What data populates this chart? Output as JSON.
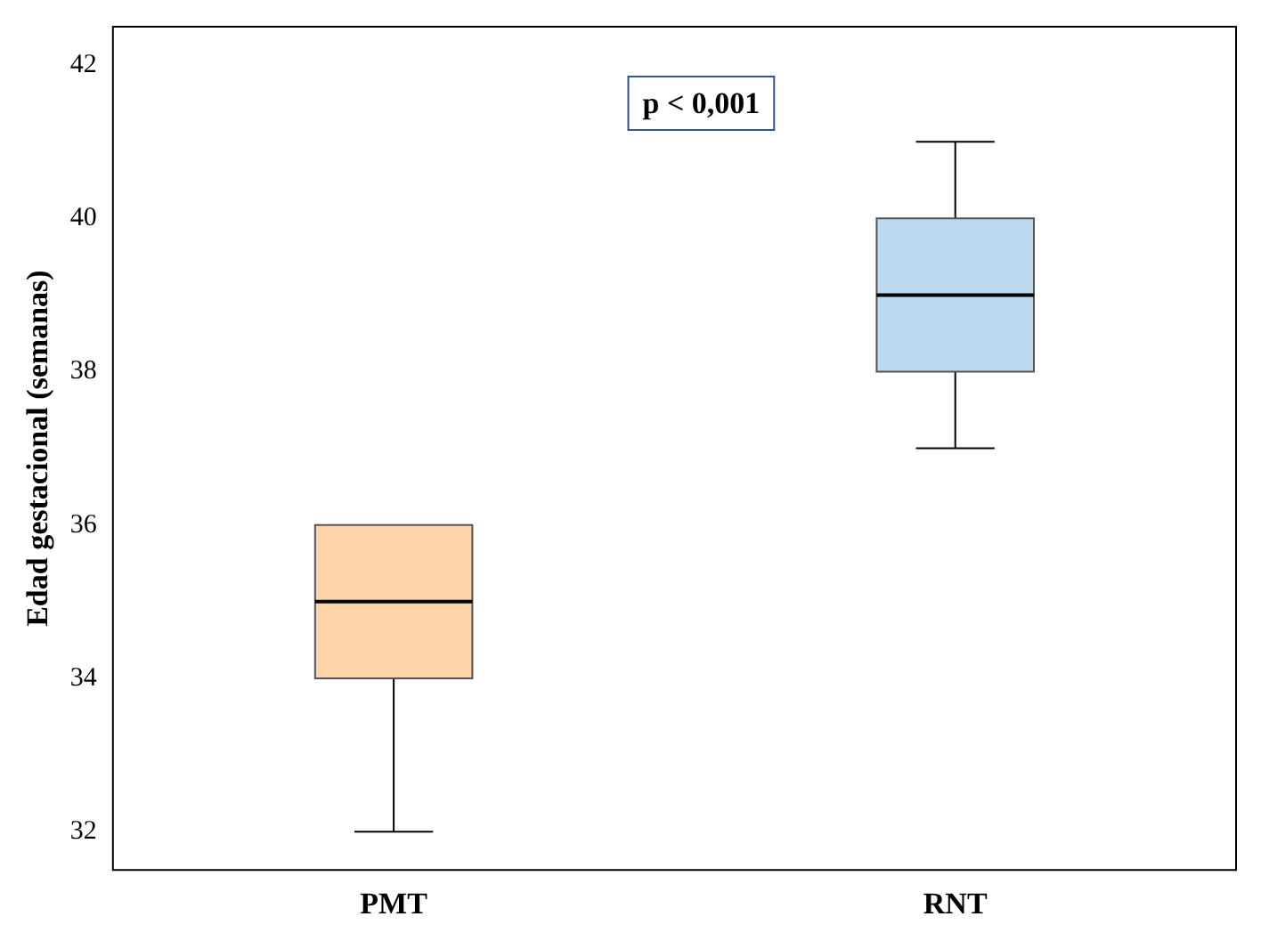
{
  "chart_data": {
    "type": "box",
    "ylabel": "Edad gestacional (semanas)",
    "categories": [
      "PMT",
      "RNT"
    ],
    "colors": [
      "#fdd3a8",
      "#bcd9f0"
    ],
    "boxes": [
      {
        "low": 32,
        "q1": 34,
        "median": 35,
        "q3": 36,
        "high": 36
      },
      {
        "low": 37,
        "q1": 38,
        "median": 39,
        "q3": 40,
        "high": 41
      }
    ],
    "ylim": [
      31.5,
      42.5
    ],
    "yticks": [
      32,
      34,
      36,
      38,
      40,
      42
    ],
    "grid": false,
    "legend": false,
    "annotations": [
      "p < 0,001"
    ]
  }
}
